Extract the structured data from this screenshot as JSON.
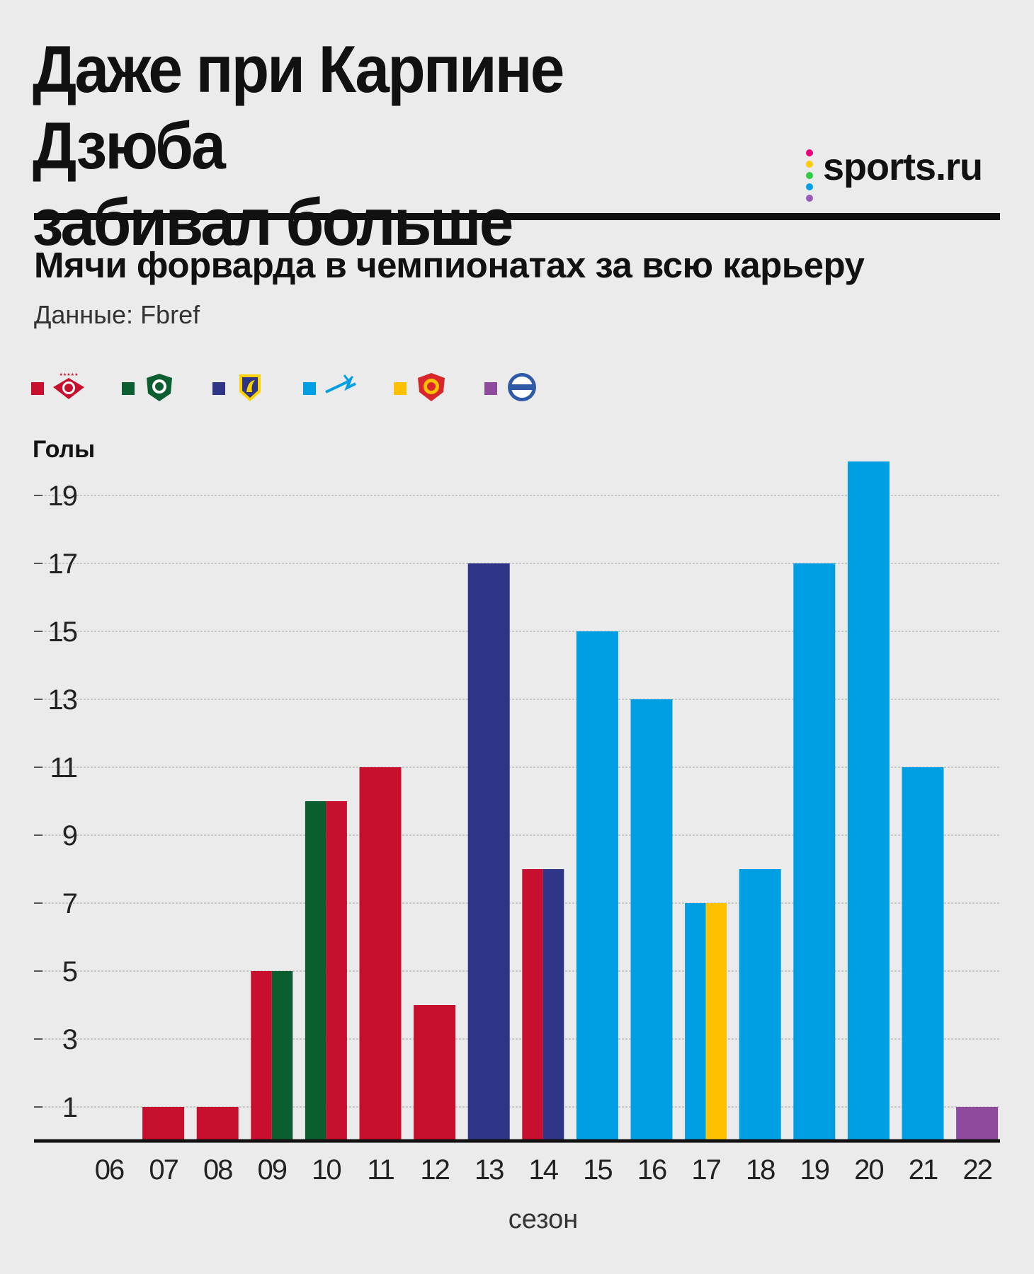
{
  "header": {
    "title_line1": "Даже при Карпине Дзюба",
    "title_line2": "забивал больше",
    "brand": "sports.ru",
    "subtitle": "Мячи форварда в чемпионатах за всю карьеру",
    "source": "Данные: Fbref"
  },
  "colors": {
    "spartak": "#c8102e",
    "tom": "#0b5e2f",
    "rostov": "#2e3486",
    "zenit": "#009fe3",
    "arsenal": "#ffc000",
    "adana": "#8e4b9e",
    "axis": "#111111",
    "grid": "#bdbdbd",
    "background": "#ebebeb"
  },
  "legend": [
    {
      "icon": "spartak-logo-icon",
      "color_key": "spartak"
    },
    {
      "icon": "tom-logo-icon",
      "color_key": "tom"
    },
    {
      "icon": "rostov-logo-icon",
      "color_key": "rostov"
    },
    {
      "icon": "zenit-logo-icon",
      "color_key": "zenit"
    },
    {
      "icon": "arsenal-logo-icon",
      "color_key": "arsenal"
    },
    {
      "icon": "adana-demirspor-logo-icon",
      "color_key": "adana"
    }
  ],
  "brand_dots": [
    "#e6007e",
    "#ffcc00",
    "#2ecc40",
    "#00a0e9",
    "#9b59b6"
  ],
  "chart_data": {
    "type": "bar",
    "ylabel": "Голы",
    "xlabel": "сезон",
    "ylim": [
      0,
      20
    ],
    "yticks": [
      1,
      3,
      5,
      7,
      9,
      11,
      13,
      15,
      17,
      19
    ],
    "grid": true,
    "categories": [
      "06",
      "07",
      "08",
      "09",
      "10",
      "11",
      "12",
      "13",
      "14",
      "15",
      "16",
      "17",
      "18",
      "19",
      "20",
      "21",
      "22"
    ],
    "values": [
      0,
      1,
      1,
      5,
      10,
      11,
      4,
      17,
      8,
      15,
      13,
      7,
      8,
      17,
      20,
      11,
      1
    ],
    "bar_colors": [
      [],
      [
        "spartak"
      ],
      [
        "spartak"
      ],
      [
        "spartak",
        "tom"
      ],
      [
        "tom",
        "spartak"
      ],
      [
        "spartak"
      ],
      [
        "spartak"
      ],
      [
        "rostov"
      ],
      [
        "spartak",
        "rostov"
      ],
      [
        "zenit"
      ],
      [
        "zenit"
      ],
      [
        "zenit",
        "arsenal"
      ],
      [
        "zenit"
      ],
      [
        "zenit"
      ],
      [
        "zenit"
      ],
      [
        "zenit"
      ],
      [
        "adana"
      ]
    ]
  }
}
